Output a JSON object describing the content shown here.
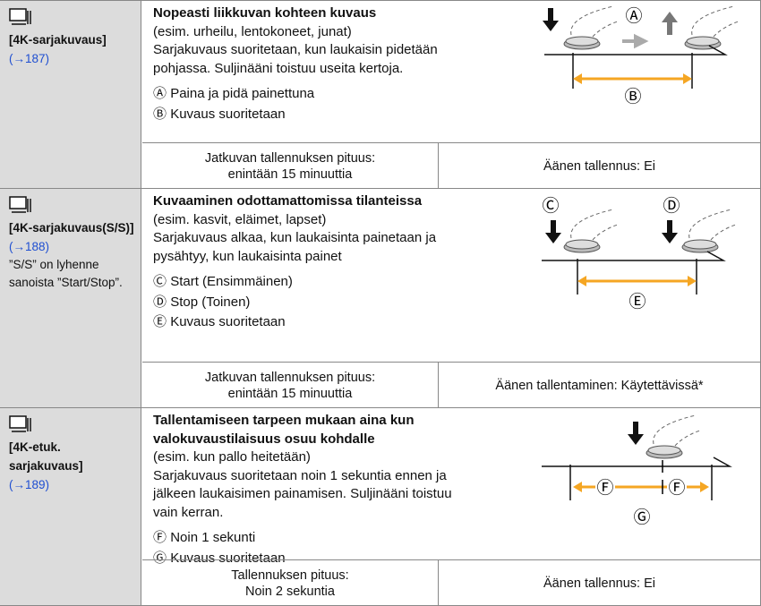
{
  "rows": [
    {
      "mode": [
        "[4K-sarjakuvaus]"
      ],
      "page": "(→187)",
      "note": [],
      "heading": [
        "Nopeasti liikkuvan kohteen kuvaus"
      ],
      "description": [
        "(esim. urheilu, lentokoneet, junat)",
        "Sarjakuvaus suoritetaan, kun laukaisin pidetään",
        "pohjassa. Suljinääni toistuu useita kertoja."
      ],
      "items": [
        {
          "marker": "Ⓐ",
          "text": "Paina ja pidä painettuna"
        },
        {
          "marker": "Ⓑ",
          "text": "Kuvaus suoritetaan"
        }
      ],
      "diagram_labels": [
        "Ⓐ",
        "Ⓑ"
      ],
      "footer_left": [
        "Jatkuvan tallennuksen pituus:",
        "enintään 15 minuuttia"
      ],
      "footer_right": "Äänen tallennus: Ei"
    },
    {
      "mode": [
        "[4K-sarjakuvaus(S/S)]"
      ],
      "page": "(→188)",
      "note": [
        "”S/S” on lyhenne",
        "sanoista ”Start/Stop”."
      ],
      "heading": [
        "Kuvaaminen odottamattomissa tilanteissa"
      ],
      "description": [
        "(esim. kasvit, eläimet, lapset)",
        "Sarjakuvaus alkaa, kun laukaisinta painetaan ja",
        "pysähtyy, kun laukaisinta painet"
      ],
      "items": [
        {
          "marker": "Ⓒ",
          "text": "Start (Ensimmäinen)"
        },
        {
          "marker": "Ⓓ",
          "text": "Stop (Toinen)"
        },
        {
          "marker": "Ⓔ",
          "text": "Kuvaus suoritetaan"
        }
      ],
      "diagram_labels": [
        "Ⓒ",
        "Ⓓ",
        "Ⓔ"
      ],
      "footer_left": [
        "Jatkuvan tallennuksen pituus:",
        "enintään 15 minuuttia"
      ],
      "footer_right": "Äänen tallentaminen: Käytettävissä*"
    },
    {
      "mode": [
        "[4K-etuk.",
        "sarjakuvaus]"
      ],
      "page": "(→189)",
      "note": [],
      "heading": [
        "Tallentamiseen tarpeen mukaan aina kun",
        "valokuvaustilaisuus osuu kohdalle"
      ],
      "description": [
        "(esim. kun pallo heitetään)",
        "Sarjakuvaus suoritetaan noin 1 sekuntia ennen ja",
        "jälkeen laukaisimen painamisen. Suljinääni toistuu",
        "vain kerran."
      ],
      "items": [
        {
          "marker": "Ⓕ",
          "text": "Noin 1 sekunti"
        },
        {
          "marker": "Ⓖ",
          "text": "Kuvaus suoritetaan"
        }
      ],
      "diagram_labels": [
        "Ⓕ",
        "Ⓕ",
        "Ⓖ"
      ],
      "footer_left": [
        "Tallennuksen pituus:",
        "Noin 2 sekuntia"
      ],
      "footer_right": "Äänen tallennus: Ei"
    }
  ]
}
